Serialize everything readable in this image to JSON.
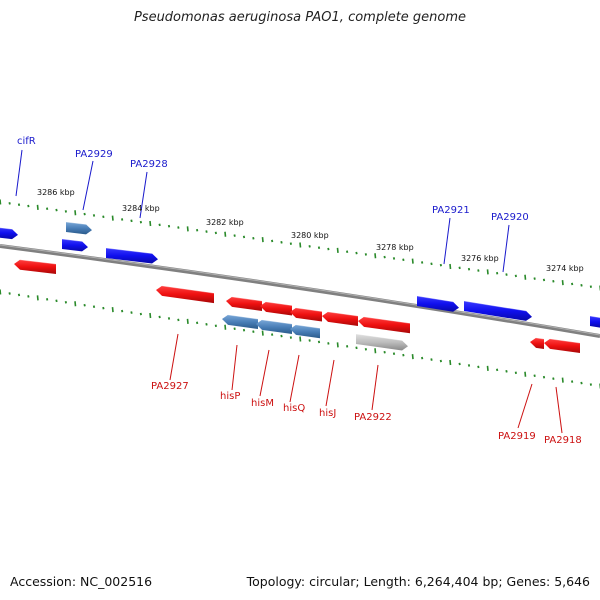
{
  "title": "Pseudomonas aeruginosa PAO1, complete genome",
  "footer": {
    "accession": "Accession: NC_002516",
    "topology": "Topology: circular; Length: 6,264,404 bp; Genes: 5,646"
  },
  "colors": {
    "forward_gene": "#1010ee",
    "reverse_gene": "#ee1010",
    "highlight_gene": "#4a7fb8",
    "pseudo_gene": "#b8b8b8",
    "backbone": "#808080",
    "tick": "#2a8a2a",
    "forward_label": "#1a1acc",
    "reverse_label": "#cc1111"
  },
  "scale_labels": [
    "3286 kbp",
    "3284 kbp",
    "3282 kbp",
    "3280 kbp",
    "3278 kbp",
    "3276 kbp",
    "3274 kbp"
  ],
  "forward_labels": [
    "cifR",
    "PA2929",
    "PA2928",
    "PA2921",
    "PA2920"
  ],
  "reverse_labels": [
    "PA2927",
    "hisP",
    "hisM",
    "hisQ",
    "hisJ",
    "PA2922",
    "PA2919",
    "PA2918"
  ]
}
